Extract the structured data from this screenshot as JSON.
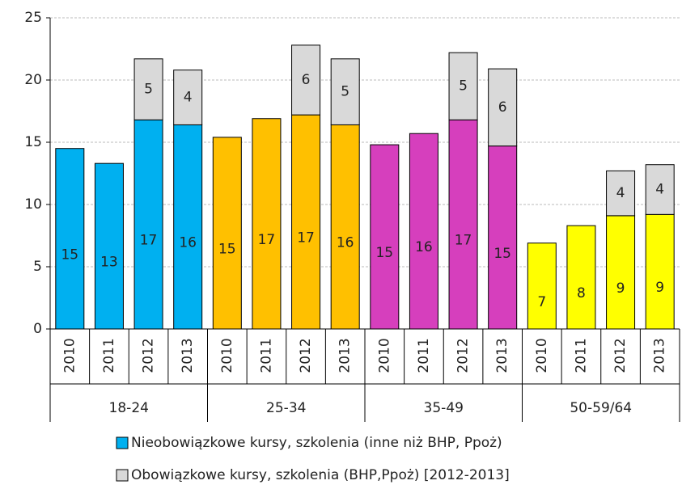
{
  "chart_data": {
    "type": "stacked_bar",
    "categories": [
      "2010",
      "2011",
      "2012",
      "2013",
      "2010",
      "2011",
      "2012",
      "2013",
      "2010",
      "2011",
      "2012",
      "2013",
      "2010",
      "2011",
      "2012",
      "2013"
    ],
    "groups": [
      "18-24",
      "25-34",
      "35-49",
      "50-59/64"
    ],
    "series": [
      {
        "name": "Nieobowiązkowe kursy, szkolenia (inne niż BHP, Ppoż)",
        "color": "#00b0f0",
        "colors": [
          "#00b0f0",
          "#00b0f0",
          "#00b0f0",
          "#00b0f0",
          "#ffc000",
          "#ffc000",
          "#ffc000",
          "#ffc000",
          "#d63fbd",
          "#d63fbd",
          "#d63fbd",
          "#d63fbd",
          "#ffff00",
          "#ffff00",
          "#ffff00",
          "#ffff00"
        ],
        "values": [
          14.5,
          13.3,
          16.8,
          16.4,
          15.4,
          16.9,
          17.2,
          16.4,
          14.8,
          15.7,
          16.8,
          14.7,
          6.9,
          8.3,
          9.1,
          9.2
        ],
        "value_labels": [
          "15",
          "13",
          "17",
          "16",
          "15",
          "17",
          "17",
          "16",
          "15",
          "16",
          "17",
          "15",
          "7",
          "8",
          "9",
          "9"
        ]
      },
      {
        "name": "Obowiązkowe kursy, szkolenia (BHP,Ppoż) [2012-2013]",
        "color": "#d9d9d9",
        "values": [
          null,
          null,
          4.9,
          4.4,
          null,
          null,
          5.6,
          5.3,
          null,
          null,
          5.4,
          6.2,
          null,
          null,
          3.6,
          4.0
        ],
        "value_labels": [
          null,
          null,
          "5",
          "4",
          null,
          null,
          "6",
          "5",
          null,
          null,
          "5",
          "6",
          null,
          null,
          "4",
          "4"
        ]
      }
    ],
    "ylim": [
      0,
      25
    ],
    "yticks": [
      0,
      5,
      10,
      15,
      20,
      25
    ],
    "grid": true
  }
}
